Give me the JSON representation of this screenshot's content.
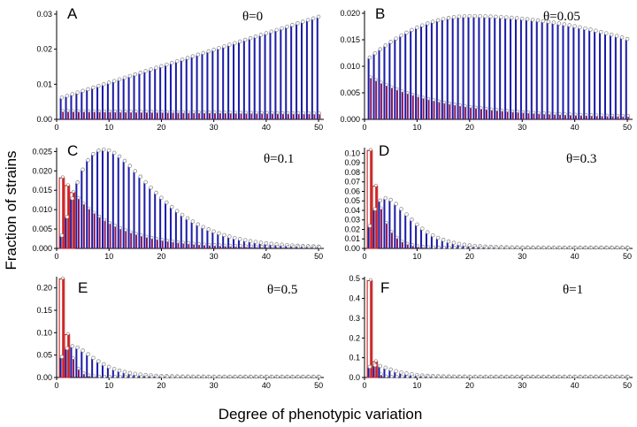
{
  "figure": {
    "ylabel": "Fraction of strains",
    "xlabel": "Degree of phenotypic variation",
    "colors": {
      "blue": "#1c1ca8",
      "red": "#cc2222",
      "purple": "#8b1a5c",
      "marker": "#888888"
    }
  },
  "chart_data": [
    {
      "type": "bar",
      "panel": "A",
      "theta_label": "θ=0",
      "x_range": [
        1,
        50
      ],
      "xlim": [
        0,
        51
      ],
      "xticks": [
        0,
        10,
        20,
        30,
        40,
        50
      ],
      "ylim": [
        0,
        0.031
      ],
      "yticks": [
        0.0,
        0.01,
        0.02,
        0.03
      ],
      "ytick_labels": [
        "0.00",
        "0.01",
        "0.02",
        "0.03"
      ],
      "series": [
        {
          "name": "blue",
          "shape": "linear",
          "start": 0.006,
          "end": 0.029
        },
        {
          "name": "red",
          "shape": "linear",
          "start": 0.0022,
          "end": 0.0015
        }
      ]
    },
    {
      "type": "bar",
      "panel": "B",
      "theta_label": "θ=0.05",
      "x_range": [
        1,
        50
      ],
      "xlim": [
        0,
        51
      ],
      "xticks": [
        0,
        10,
        20,
        30,
        40,
        50
      ],
      "ylim": [
        0,
        0.0205
      ],
      "yticks": [
        0.0,
        0.005,
        0.01,
        0.015,
        0.02
      ],
      "ytick_labels": [
        "0.000",
        "0.005",
        "0.010",
        "0.015",
        "0.020"
      ],
      "series": [
        {
          "name": "blue",
          "shape": "hump",
          "start": 0.0115,
          "peak": 0.0193,
          "peak_x": 20,
          "end": 0.015
        },
        {
          "name": "red",
          "shape": "exp",
          "start": 0.0078,
          "tau": 14,
          "floor": 0.0003
        }
      ]
    },
    {
      "type": "bar",
      "panel": "C",
      "theta_label": "θ=0.1",
      "x_range": [
        1,
        50
      ],
      "xlim": [
        0,
        51
      ],
      "xticks": [
        0,
        10,
        20,
        30,
        40,
        50
      ],
      "ylim": [
        0,
        0.026
      ],
      "yticks": [
        0.0,
        0.005,
        0.01,
        0.015,
        0.02,
        0.025
      ],
      "ytick_labels": [
        "0.000",
        "0.005",
        "0.010",
        "0.015",
        "0.020",
        "0.025"
      ],
      "series": [
        {
          "name": "blue",
          "shape": "gamma",
          "peak": 0.0253,
          "peak_x": 9,
          "k": 2.6,
          "floor": 0.0
        },
        {
          "name": "red",
          "shape": "exp",
          "start": 0.0182,
          "tau": 8.5,
          "floor": 0.0001
        }
      ]
    },
    {
      "type": "bar",
      "panel": "D",
      "theta_label": "θ=0.3",
      "x_range": [
        1,
        50
      ],
      "xlim": [
        0,
        51
      ],
      "xticks": [
        0,
        10,
        20,
        30,
        40,
        50
      ],
      "ylim": [
        0,
        0.106
      ],
      "yticks": [
        0.0,
        0.01,
        0.02,
        0.03,
        0.04,
        0.05,
        0.06,
        0.07,
        0.08,
        0.09,
        0.1
      ],
      "ytick_labels": [
        "0.00",
        "0.01",
        "0.02",
        "0.03",
        "0.04",
        "0.05",
        "0.06",
        "0.07",
        "0.08",
        "0.09",
        "0.10"
      ],
      "series": [
        {
          "name": "blue",
          "shape": "gamma",
          "peak": 0.052,
          "peak_x": 4,
          "k": 2.3,
          "floor": 0.0
        },
        {
          "name": "red",
          "shape": "exp",
          "start": 0.103,
          "tau": 2.2,
          "floor": 0.0
        }
      ]
    },
    {
      "type": "bar",
      "panel": "E",
      "theta_label": "θ=0.5",
      "x_range": [
        1,
        50
      ],
      "xlim": [
        0,
        51
      ],
      "xticks": [
        0,
        10,
        20,
        30,
        40,
        50
      ],
      "ylim": [
        0,
        0.225
      ],
      "yticks": [
        0.0,
        0.05,
        0.1,
        0.15,
        0.2
      ],
      "ytick_labels": [
        "0.00",
        "0.05",
        "0.10",
        "0.15",
        "0.20"
      ],
      "series": [
        {
          "name": "blue",
          "shape": "gamma",
          "peak": 0.068,
          "peak_x": 3,
          "k": 2.0,
          "floor": 0.0
        },
        {
          "name": "red",
          "shape": "exp",
          "start": 0.22,
          "tau": 1.2,
          "floor": 0.0
        }
      ]
    },
    {
      "type": "bar",
      "panel": "F",
      "theta_label": "θ=1",
      "x_range": [
        1,
        50
      ],
      "xlim": [
        0,
        51
      ],
      "xticks": [
        0,
        10,
        20,
        30,
        40,
        50
      ],
      "ylim": [
        0,
        0.51
      ],
      "yticks": [
        0.0,
        0.1,
        0.2,
        0.3,
        0.4,
        0.5
      ],
      "ytick_labels": [
        "0.0",
        "0.1",
        "0.2",
        "0.3",
        "0.4",
        "0.5"
      ],
      "series": [
        {
          "name": "blue",
          "shape": "gamma",
          "peak": 0.058,
          "peak_x": 2,
          "k": 1.8,
          "floor": 0.0
        },
        {
          "name": "red",
          "shape": "exp",
          "start": 0.49,
          "tau": 0.55,
          "floor": 0.0
        }
      ]
    }
  ]
}
